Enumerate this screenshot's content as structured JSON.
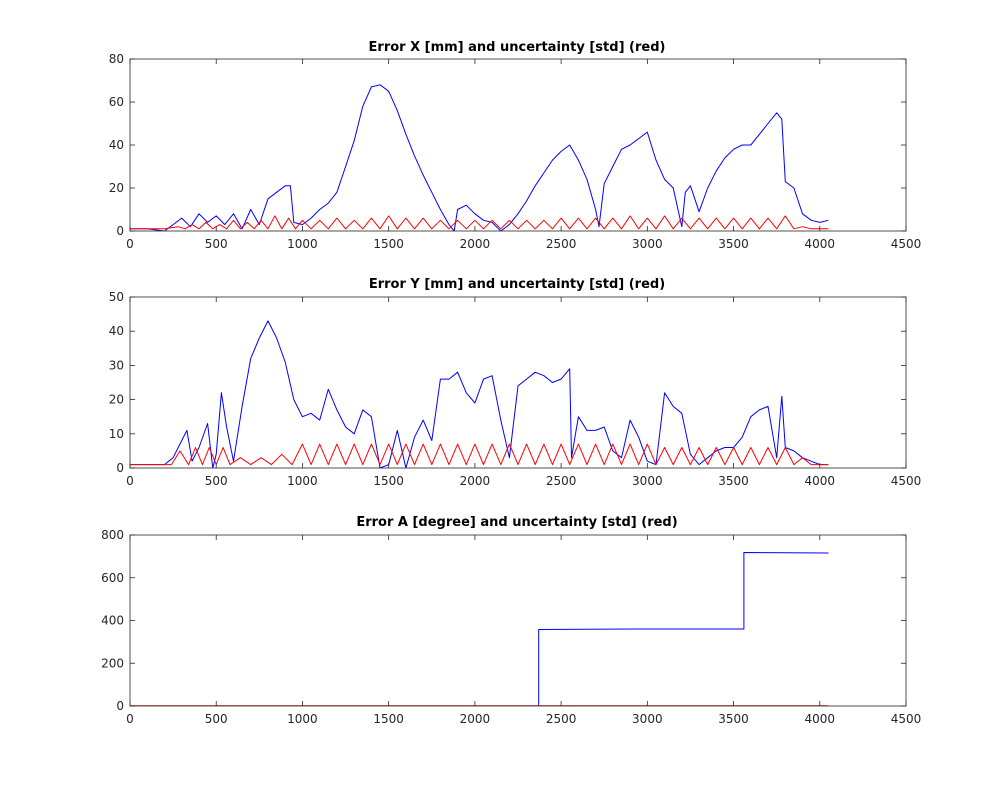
{
  "chart_data": [
    {
      "type": "line",
      "title": "Error X [mm] and uncertainty [std] (red)",
      "xlim": [
        0,
        4500
      ],
      "ylim": [
        0,
        80
      ],
      "xticks": [
        0,
        500,
        1000,
        1500,
        2000,
        2500,
        3000,
        3500,
        4000,
        4500
      ],
      "yticks": [
        0,
        20,
        40,
        60,
        80
      ],
      "series": [
        {
          "color": "#0000ff",
          "x": [
            0,
            100,
            200,
            250,
            300,
            350,
            400,
            450,
            500,
            550,
            600,
            650,
            700,
            750,
            800,
            850,
            900,
            930,
            950,
            1000,
            1050,
            1100,
            1150,
            1200,
            1250,
            1300,
            1350,
            1400,
            1450,
            1500,
            1550,
            1600,
            1650,
            1700,
            1750,
            1800,
            1850,
            1880,
            1900,
            1950,
            2000,
            2050,
            2100,
            2150,
            2200,
            2250,
            2300,
            2350,
            2400,
            2450,
            2500,
            2550,
            2600,
            2650,
            2700,
            2720,
            2750,
            2800,
            2850,
            2900,
            2950,
            3000,
            3050,
            3100,
            3150,
            3200,
            3220,
            3250,
            3300,
            3350,
            3400,
            3450,
            3500,
            3550,
            3600,
            3650,
            3700,
            3750,
            3780,
            3800,
            3850,
            3900,
            3950,
            4000,
            4050
          ],
          "y": [
            1,
            1,
            0,
            3,
            6,
            2,
            8,
            4,
            7,
            3,
            8,
            1,
            10,
            3,
            15,
            18,
            21,
            21,
            4,
            3,
            6,
            10,
            13,
            18,
            30,
            42,
            58,
            67,
            68,
            65,
            56,
            45,
            35,
            26,
            18,
            10,
            3,
            0,
            10,
            12,
            8,
            5,
            4,
            0,
            3,
            8,
            14,
            21,
            27,
            33,
            37,
            40,
            33,
            24,
            10,
            2,
            22,
            30,
            38,
            40,
            43,
            46,
            33,
            24,
            20,
            2,
            18,
            21,
            9,
            20,
            28,
            34,
            38,
            40,
            40,
            45,
            50,
            55,
            52,
            23,
            20,
            8,
            5,
            4,
            5
          ]
        },
        {
          "color": "#ff0000",
          "x": [
            0,
            100,
            200,
            280,
            320,
            360,
            400,
            440,
            480,
            520,
            560,
            600,
            640,
            680,
            720,
            760,
            800,
            840,
            880,
            920,
            960,
            1000,
            1050,
            1100,
            1150,
            1200,
            1250,
            1300,
            1350,
            1400,
            1450,
            1500,
            1550,
            1600,
            1650,
            1700,
            1750,
            1800,
            1850,
            1900,
            1950,
            2000,
            2050,
            2100,
            2150,
            2200,
            2250,
            2300,
            2350,
            2400,
            2450,
            2500,
            2550,
            2600,
            2650,
            2700,
            2750,
            2800,
            2850,
            2900,
            2950,
            3000,
            3050,
            3100,
            3150,
            3200,
            3250,
            3300,
            3350,
            3400,
            3450,
            3500,
            3550,
            3600,
            3650,
            3700,
            3750,
            3800,
            3850,
            3900,
            3950,
            4000,
            4050
          ],
          "y": [
            1,
            1,
            1,
            2,
            1,
            3,
            1,
            4,
            1,
            3,
            1,
            5,
            1,
            4,
            1,
            5,
            1,
            7,
            1,
            6,
            1,
            5,
            1,
            5,
            1,
            6,
            1,
            5,
            1,
            6,
            1,
            7,
            1,
            6,
            1,
            6,
            1,
            5,
            1,
            5,
            1,
            5,
            1,
            5,
            1,
            5,
            1,
            5,
            1,
            5,
            1,
            6,
            1,
            6,
            1,
            6,
            1,
            6,
            1,
            7,
            1,
            6,
            1,
            7,
            1,
            6,
            1,
            6,
            1,
            6,
            1,
            6,
            1,
            6,
            1,
            6,
            1,
            7,
            1,
            2,
            1,
            1,
            1
          ]
        }
      ]
    },
    {
      "type": "line",
      "title": "Error Y [mm] and uncertainty [std] (red)",
      "xlim": [
        0,
        4500
      ],
      "ylim": [
        0,
        50
      ],
      "xticks": [
        0,
        500,
        1000,
        1500,
        2000,
        2500,
        3000,
        3500,
        4000,
        4500
      ],
      "yticks": [
        0,
        10,
        20,
        30,
        40,
        50
      ],
      "series": [
        {
          "color": "#0000ff",
          "x": [
            0,
            100,
            200,
            250,
            300,
            330,
            360,
            400,
            450,
            480,
            500,
            530,
            560,
            600,
            650,
            700,
            750,
            800,
            850,
            900,
            950,
            1000,
            1050,
            1100,
            1150,
            1200,
            1250,
            1300,
            1350,
            1400,
            1450,
            1500,
            1550,
            1600,
            1650,
            1700,
            1750,
            1800,
            1850,
            1900,
            1950,
            2000,
            2050,
            2100,
            2150,
            2200,
            2250,
            2300,
            2350,
            2400,
            2450,
            2500,
            2550,
            2560,
            2600,
            2650,
            2700,
            2750,
            2800,
            2850,
            2900,
            2950,
            3000,
            3050,
            3100,
            3150,
            3200,
            3250,
            3300,
            3350,
            3400,
            3450,
            3500,
            3550,
            3600,
            3650,
            3700,
            3750,
            3780,
            3800,
            3850,
            3900,
            3950,
            4000,
            4050
          ],
          "y": [
            1,
            1,
            1,
            3,
            8,
            11,
            2,
            6,
            13,
            0,
            4,
            22,
            12,
            2,
            18,
            32,
            38,
            43,
            38,
            31,
            20,
            15,
            16,
            14,
            23,
            17,
            12,
            10,
            17,
            15,
            0,
            1,
            11,
            0,
            9,
            14,
            8,
            26,
            26,
            28,
            22,
            19,
            26,
            27,
            14,
            3,
            24,
            26,
            28,
            27,
            25,
            26,
            29,
            3,
            15,
            11,
            11,
            12,
            5,
            3,
            14,
            9,
            2,
            1,
            22,
            18,
            16,
            4,
            1,
            3,
            5,
            6,
            6,
            9,
            15,
            17,
            18,
            3,
            21,
            6,
            5,
            3,
            2,
            1,
            1
          ]
        },
        {
          "color": "#ff0000",
          "x": [
            0,
            100,
            200,
            240,
            290,
            340,
            380,
            420,
            460,
            500,
            540,
            580,
            640,
            700,
            760,
            820,
            880,
            940,
            1000,
            1050,
            1100,
            1150,
            1200,
            1250,
            1300,
            1350,
            1400,
            1450,
            1500,
            1550,
            1600,
            1650,
            1700,
            1750,
            1800,
            1850,
            1900,
            1950,
            2000,
            2050,
            2100,
            2150,
            2200,
            2250,
            2300,
            2350,
            2400,
            2450,
            2500,
            2550,
            2600,
            2650,
            2700,
            2750,
            2800,
            2850,
            2900,
            2950,
            3000,
            3050,
            3100,
            3150,
            3200,
            3250,
            3300,
            3350,
            3400,
            3450,
            3500,
            3550,
            3600,
            3650,
            3700,
            3750,
            3800,
            3850,
            3900,
            3950,
            4000,
            4050
          ],
          "y": [
            1,
            1,
            1,
            1,
            5,
            1,
            6,
            1,
            6,
            1,
            6,
            1,
            3,
            1,
            3,
            1,
            4,
            1,
            7,
            1,
            7,
            1,
            7,
            1,
            7,
            1,
            7,
            1,
            7,
            1,
            7,
            1,
            7,
            1,
            7,
            1,
            7,
            1,
            7,
            1,
            7,
            1,
            7,
            1,
            7,
            1,
            7,
            1,
            7,
            1,
            7,
            1,
            7,
            1,
            7,
            1,
            7,
            1,
            7,
            1,
            6,
            1,
            6,
            1,
            6,
            1,
            6,
            1,
            6,
            1,
            6,
            1,
            6,
            1,
            6,
            1,
            3,
            1,
            1,
            1
          ]
        }
      ]
    },
    {
      "type": "line",
      "title": "Error A [degree] and uncertainty [std] (red)",
      "xlim": [
        0,
        4500
      ],
      "ylim": [
        0,
        800
      ],
      "xticks": [
        0,
        500,
        1000,
        1500,
        2000,
        2500,
        3000,
        3500,
        4000,
        4500
      ],
      "yticks": [
        0,
        200,
        400,
        600,
        800
      ],
      "series": [
        {
          "color": "#0000ff",
          "x": [
            0,
            2370,
            2370,
            3000,
            3560,
            3560,
            4050
          ],
          "y": [
            0,
            0,
            358,
            360,
            360,
            718,
            716
          ]
        },
        {
          "color": "#ff0000",
          "x": [
            0,
            4050
          ],
          "y": [
            1,
            1
          ]
        }
      ]
    }
  ]
}
